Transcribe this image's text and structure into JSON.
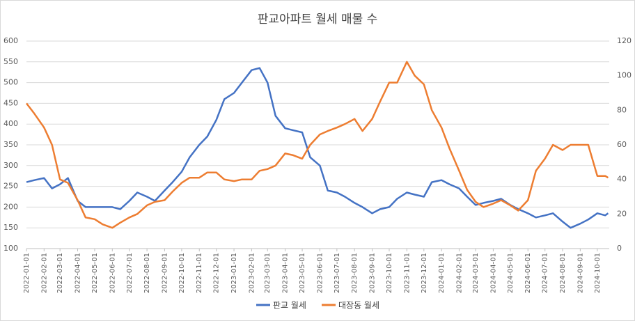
{
  "chart_data": {
    "type": "line",
    "title": "판교아파트 월세 매물 수",
    "x": [
      "2022-01-01",
      "2022-01-15",
      "2022-02-01",
      "2022-02-15",
      "2022-03-01",
      "2022-03-15",
      "2022-04-01",
      "2022-04-15",
      "2022-05-01",
      "2022-05-15",
      "2022-06-01",
      "2022-06-15",
      "2022-07-01",
      "2022-07-15",
      "2022-08-01",
      "2022-08-15",
      "2022-09-01",
      "2022-09-15",
      "2022-10-01",
      "2022-10-15",
      "2022-11-01",
      "2022-11-15",
      "2022-12-01",
      "2022-12-15",
      "2023-01-01",
      "2023-01-15",
      "2023-02-01",
      "2023-02-15",
      "2023-03-01",
      "2023-03-15",
      "2023-04-01",
      "2023-04-15",
      "2023-05-01",
      "2023-05-15",
      "2023-06-01",
      "2023-06-15",
      "2023-07-01",
      "2023-07-15",
      "2023-08-01",
      "2023-08-15",
      "2023-09-01",
      "2023-09-15",
      "2023-10-01",
      "2023-10-15",
      "2023-11-01",
      "2023-11-15",
      "2023-12-01",
      "2023-12-15",
      "2024-01-01",
      "2024-01-15",
      "2024-02-01",
      "2024-02-15",
      "2024-03-01",
      "2024-03-15",
      "2024-04-01",
      "2024-04-15",
      "2024-05-01",
      "2024-05-15",
      "2024-06-01",
      "2024-06-15",
      "2024-07-01",
      "2024-07-15",
      "2024-08-01",
      "2024-08-15",
      "2024-09-01",
      "2024-09-15",
      "2024-10-01",
      "2024-10-15",
      "2024-10-20"
    ],
    "series": [
      {
        "name": "판교 월세",
        "color": "#4472c4",
        "axis": "y",
        "values": [
          260,
          265,
          270,
          245,
          255,
          270,
          215,
          200,
          200,
          200,
          200,
          195,
          215,
          235,
          225,
          215,
          240,
          260,
          285,
          320,
          350,
          370,
          410,
          460,
          475,
          500,
          530,
          535,
          500,
          420,
          390,
          385,
          380,
          320,
          300,
          240,
          235,
          225,
          210,
          200,
          185,
          195,
          200,
          220,
          235,
          230,
          225,
          260,
          265,
          255,
          245,
          225,
          205,
          210,
          215,
          220,
          205,
          195,
          185,
          175,
          180,
          185,
          165,
          150,
          160,
          170,
          185,
          180,
          185
        ]
      },
      {
        "name": "대장동 월세",
        "color": "#ed7d31",
        "axis": "y2",
        "values": [
          84,
          78,
          70,
          60,
          40,
          38,
          28,
          18,
          17,
          14,
          12,
          15,
          18,
          20,
          25,
          27,
          28,
          33,
          38,
          41,
          41,
          44,
          44,
          40,
          39,
          40,
          40,
          45,
          46,
          48,
          55,
          54,
          52,
          60,
          66,
          68,
          70,
          72,
          75,
          68,
          75,
          85,
          96,
          96,
          108,
          100,
          95,
          80,
          70,
          58,
          45,
          34,
          27,
          24,
          26,
          28,
          25,
          22,
          28,
          45,
          52,
          60,
          57,
          60,
          60,
          60,
          42,
          42,
          41
        ]
      }
    ],
    "xlim": [
      "2022-01-01",
      "2024-10-22"
    ],
    "xticks": [
      "2022-01-01",
      "2022-02-01",
      "2022-03-01",
      "2022-04-01",
      "2022-05-01",
      "2022-06-01",
      "2022-07-01",
      "2022-08-01",
      "2022-09-01",
      "2022-10-01",
      "2022-11-01",
      "2022-12-01",
      "2023-01-01",
      "2023-02-01",
      "2023-03-01",
      "2023-04-01",
      "2023-05-01",
      "2023-06-01",
      "2023-07-01",
      "2023-08-01",
      "2023-09-01",
      "2023-10-01",
      "2023-11-01",
      "2023-12-01",
      "2024-01-01",
      "2024-02-01",
      "2024-03-01",
      "2024-04-01",
      "2024-05-01",
      "2024-06-01",
      "2024-07-01",
      "2024-08-01",
      "2024-09-01",
      "2024-10-01"
    ],
    "ylim": [
      100,
      600
    ],
    "yticks": [
      100,
      150,
      200,
      250,
      300,
      350,
      400,
      450,
      500,
      550,
      600
    ],
    "y2lim": [
      0,
      120
    ],
    "y2ticks": [
      0,
      20,
      40,
      60,
      80,
      100,
      120
    ],
    "grid": true,
    "legend": "bottom"
  }
}
